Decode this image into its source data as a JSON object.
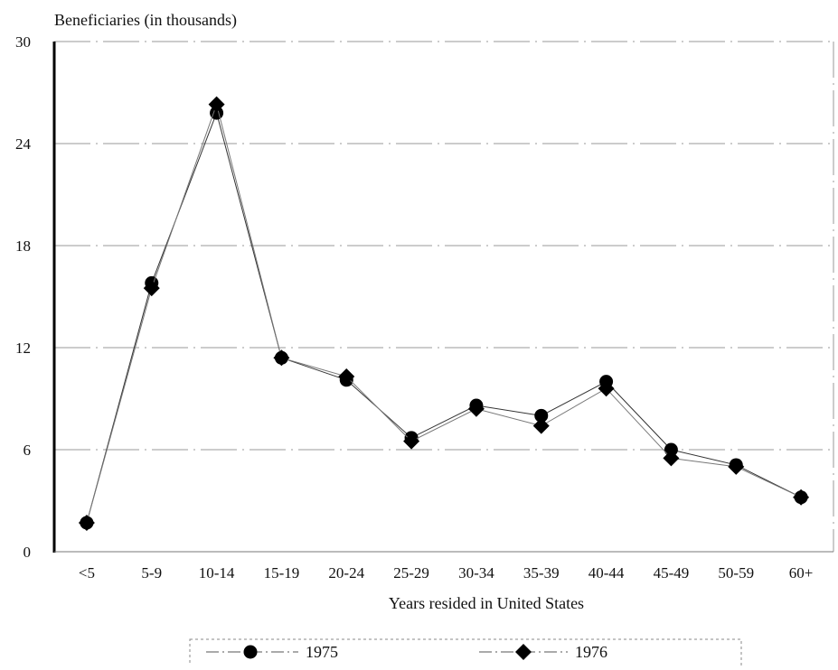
{
  "chart_data": {
    "type": "line",
    "ylabel": "Beneficiaries (in thousands)",
    "xlabel": "Years resided in United States",
    "categories": [
      "<5",
      "5-9",
      "10-14",
      "15-19",
      "20-24",
      "25-29",
      "30-34",
      "35-39",
      "40-44",
      "45-49",
      "50-59",
      "60+"
    ],
    "ylim": [
      0,
      30
    ],
    "yticks": [
      "0",
      "6",
      "12",
      "18",
      "24",
      "30"
    ],
    "grid": true,
    "legend_position": "bottom",
    "series": [
      {
        "name": "1975",
        "marker": "circle",
        "color": "#000000",
        "values": [
          1.7,
          15.8,
          25.8,
          11.4,
          10.1,
          6.7,
          8.6,
          8.0,
          10.0,
          6.0,
          5.1,
          3.2
        ]
      },
      {
        "name": "1976",
        "marker": "diamond",
        "color": "#000000",
        "values": [
          1.7,
          15.5,
          26.3,
          11.4,
          10.3,
          6.5,
          8.4,
          7.4,
          9.6,
          5.5,
          5.0,
          3.2
        ]
      }
    ]
  }
}
